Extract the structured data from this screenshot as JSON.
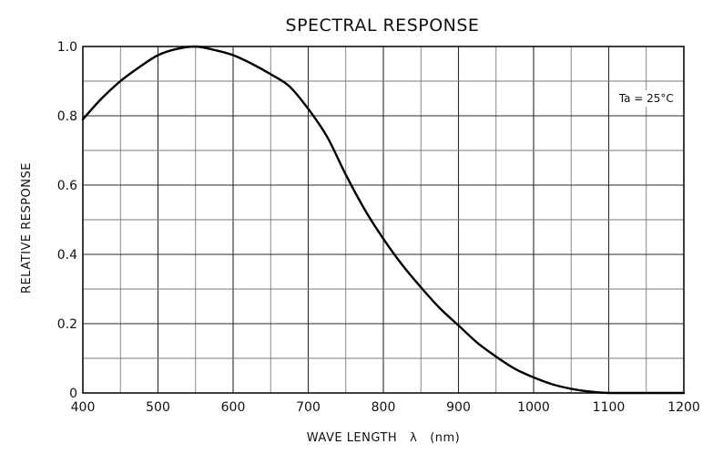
{
  "chart_data": {
    "type": "line",
    "title": "SPECTRAL RESPONSE",
    "xlabel": "WAVE LENGTH   λ   (nm)",
    "ylabel": "RELATIVE RESPONSE",
    "xlim": [
      400,
      1200
    ],
    "ylim": [
      0,
      1.0
    ],
    "x_ticks": [
      400,
      500,
      600,
      700,
      800,
      900,
      1000,
      1100,
      1200
    ],
    "x_tick_labels": [
      "400",
      "500",
      "600",
      "700",
      "800",
      "900",
      "1000",
      "1100",
      "1200"
    ],
    "y_ticks": [
      0,
      0.2,
      0.4,
      0.6,
      0.8,
      1.0
    ],
    "y_tick_labels": [
      "0",
      "0.2",
      "0.4",
      "0.6",
      "0.8",
      "1.0"
    ],
    "x_minor_step": 50,
    "y_minor_step": 0.1,
    "grid": true,
    "annotation": "Ta = 25°C",
    "series": [
      {
        "color": "#000000",
        "points": [
          [
            400,
            0.79
          ],
          [
            425,
            0.85
          ],
          [
            450,
            0.9
          ],
          [
            475,
            0.94
          ],
          [
            500,
            0.975
          ],
          [
            525,
            0.993
          ],
          [
            550,
            1.0
          ],
          [
            575,
            0.99
          ],
          [
            600,
            0.975
          ],
          [
            625,
            0.95
          ],
          [
            650,
            0.92
          ],
          [
            675,
            0.885
          ],
          [
            700,
            0.82
          ],
          [
            725,
            0.74
          ],
          [
            750,
            0.63
          ],
          [
            775,
            0.53
          ],
          [
            800,
            0.445
          ],
          [
            825,
            0.37
          ],
          [
            850,
            0.305
          ],
          [
            875,
            0.245
          ],
          [
            900,
            0.195
          ],
          [
            925,
            0.145
          ],
          [
            950,
            0.105
          ],
          [
            975,
            0.07
          ],
          [
            1000,
            0.045
          ],
          [
            1025,
            0.025
          ],
          [
            1050,
            0.012
          ],
          [
            1075,
            0.004
          ],
          [
            1100,
            0.0
          ],
          [
            1150,
            0.0
          ],
          [
            1200,
            0.0
          ]
        ]
      }
    ]
  }
}
